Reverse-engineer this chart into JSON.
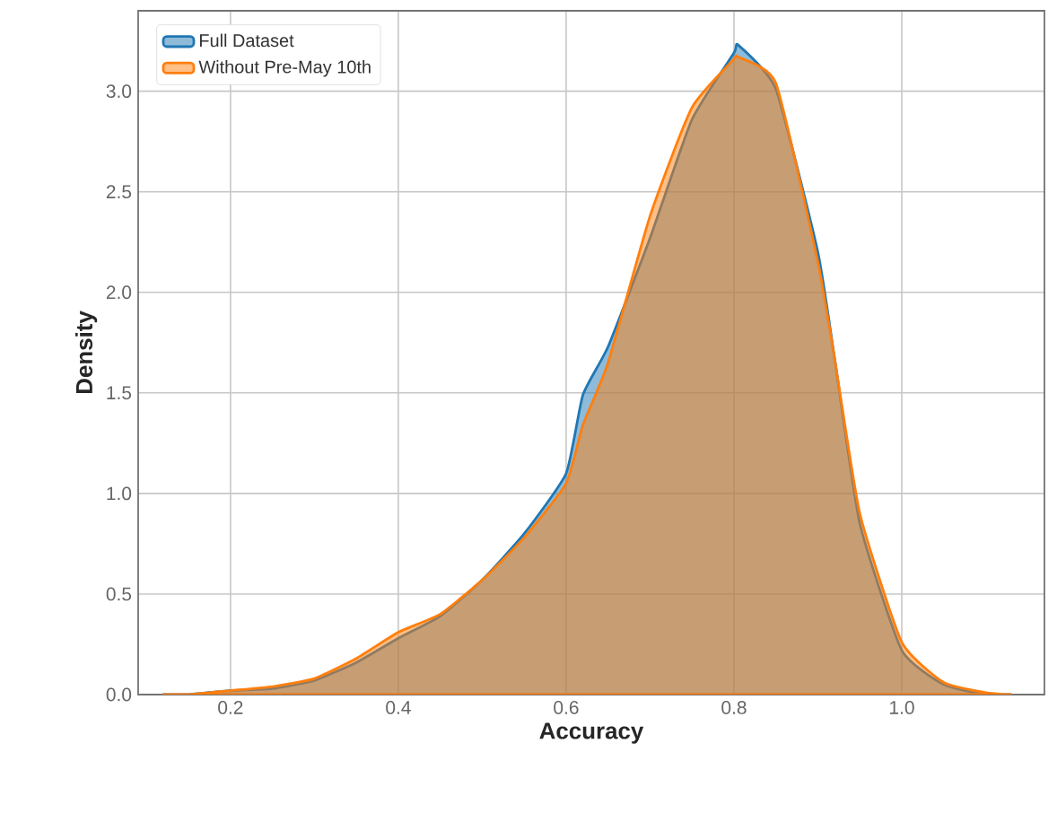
{
  "chart_data": {
    "type": "area",
    "xlabel": "Accuracy",
    "ylabel": "Density",
    "x": [
      0.12,
      0.15,
      0.2,
      0.25,
      0.3,
      0.35,
      0.4,
      0.45,
      0.5,
      0.55,
      0.6,
      0.62,
      0.65,
      0.7,
      0.75,
      0.8,
      0.805,
      0.85,
      0.9,
      0.92,
      0.95,
      1.0,
      1.05,
      1.1,
      1.13
    ],
    "series": [
      {
        "name": "Full Dataset",
        "color": "#1f77b4",
        "values": [
          0,
          0,
          0.02,
          0.03,
          0.07,
          0.16,
          0.28,
          0.39,
          0.57,
          0.8,
          1.1,
          1.49,
          1.73,
          2.27,
          2.86,
          3.19,
          3.23,
          3.01,
          2.2,
          1.67,
          0.85,
          0.22,
          0.05,
          0,
          0
        ]
      },
      {
        "name": "Without Pre-May 10th",
        "color": "#ff7f0e",
        "values": [
          0,
          0,
          0.02,
          0.04,
          0.08,
          0.18,
          0.31,
          0.4,
          0.57,
          0.78,
          1.05,
          1.34,
          1.65,
          2.38,
          2.92,
          3.16,
          3.17,
          3.04,
          2.15,
          1.67,
          0.9,
          0.26,
          0.06,
          0.01,
          0
        ]
      }
    ],
    "xlim": [
      0.09,
      1.17
    ],
    "ylim": [
      0,
      3.4
    ],
    "xticks": [
      0.2,
      0.4,
      0.6,
      0.8,
      {
        "value": 1,
        "label": "1.0"
      }
    ],
    "yticks": [
      {
        "value": 0,
        "label": "0.0"
      },
      0.5,
      {
        "value": 1,
        "label": "1.0"
      },
      1.5,
      {
        "value": 2,
        "label": "2.0"
      },
      2.5,
      {
        "value": 3,
        "label": "3.0"
      }
    ],
    "grid": true,
    "legend": "top left",
    "marker": "none",
    "line_style": "solid"
  }
}
